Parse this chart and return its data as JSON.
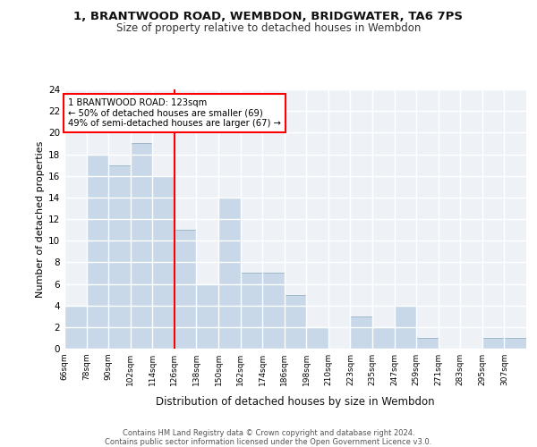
{
  "title1": "1, BRANTWOOD ROAD, WEMBDON, BRIDGWATER, TA6 7PS",
  "title2": "Size of property relative to detached houses in Wembdon",
  "xlabel": "Distribution of detached houses by size in Wembdon",
  "ylabel": "Number of detached properties",
  "bin_labels": [
    "66sqm",
    "78sqm",
    "90sqm",
    "102sqm",
    "114sqm",
    "126sqm",
    "138sqm",
    "150sqm",
    "162sqm",
    "174sqm",
    "186sqm",
    "198sqm",
    "210sqm",
    "223sqm",
    "235sqm",
    "247sqm",
    "259sqm",
    "271sqm",
    "283sqm",
    "295sqm",
    "307sqm"
  ],
  "bar_values": [
    4,
    18,
    17,
    19,
    16,
    11,
    6,
    14,
    7,
    7,
    5,
    2,
    0,
    3,
    2,
    4,
    1,
    0,
    0,
    1,
    1
  ],
  "bar_color": "#c8d8e8",
  "bar_edge_color": "#a0b8cc",
  "annotation_text": "1 BRANTWOOD ROAD: 123sqm\n← 50% of detached houses are smaller (69)\n49% of semi-detached houses are larger (67) →",
  "annotation_box_color": "white",
  "annotation_box_edge_color": "red",
  "vline_color": "red",
  "ylim": [
    0,
    24
  ],
  "yticks": [
    0,
    2,
    4,
    6,
    8,
    10,
    12,
    14,
    16,
    18,
    20,
    22,
    24
  ],
  "footer_text": "Contains HM Land Registry data © Crown copyright and database right 2024.\nContains public sector information licensed under the Open Government Licence v3.0.",
  "bg_color": "#eef2f7",
  "grid_color": "#ffffff"
}
